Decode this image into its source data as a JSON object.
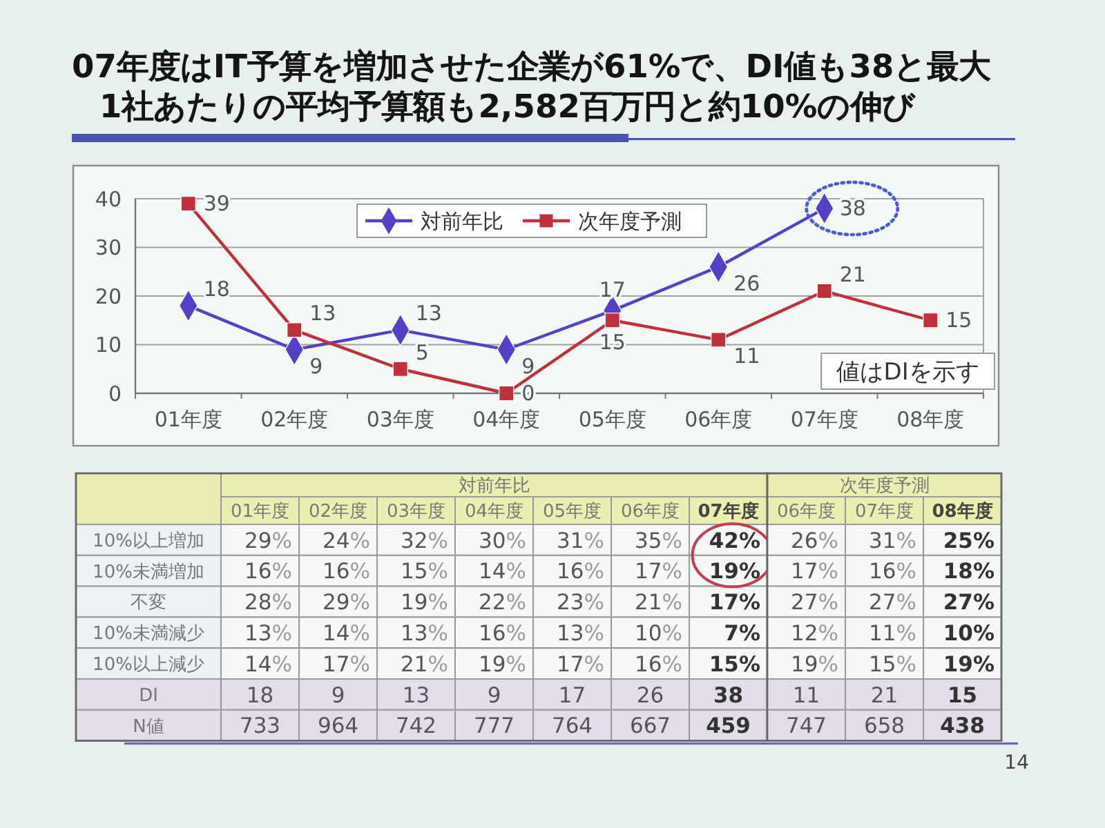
{
  "chart_data": [
    {
      "type": "line",
      "title": "07年度はIT予算を増加させた企業が61%で、DI値も38と最大",
      "subtitle": "1社あたりの平均予算額も2,582百万円と約10%の伸び",
      "categories": [
        "01年度",
        "02年度",
        "03年度",
        "04年度",
        "05年度",
        "06年度",
        "07年度",
        "08年度"
      ],
      "series": [
        {
          "name": "対前年比",
          "color": "#5541c9",
          "marker": "diamond",
          "values": [
            18,
            9,
            13,
            9,
            17,
            26,
            38,
            null
          ]
        },
        {
          "name": "次年度予測",
          "color": "#c0303a",
          "marker": "square",
          "values": [
            39,
            13,
            5,
            0,
            15,
            11,
            21,
            15
          ]
        }
      ],
      "ylim": [
        0,
        40
      ],
      "yticks": [
        0,
        10,
        20,
        30,
        40
      ],
      "grid": "y",
      "legend": "top",
      "data_labels": true,
      "annotations": [
        "値はDIを示す"
      ]
    },
    {
      "type": "heatmap",
      "title": "対前年比",
      "categories": [
        "01年度",
        "02年度",
        "03年度",
        "04年度",
        "05年度",
        "06年度",
        "07年度"
      ],
      "y_categories": [
        "10%以上増加",
        "10%未満増加",
        "不変",
        "10%未満減少",
        "10%以上減少",
        "DI",
        "N値"
      ],
      "cells": [
        [
          29,
          24,
          32,
          30,
          31,
          35,
          42
        ],
        [
          16,
          16,
          15,
          14,
          16,
          17,
          19
        ],
        [
          28,
          29,
          19,
          22,
          23,
          21,
          17
        ],
        [
          13,
          14,
          13,
          16,
          13,
          10,
          7
        ],
        [
          14,
          17,
          21,
          19,
          17,
          16,
          15
        ],
        [
          18,
          9,
          13,
          9,
          17,
          26,
          38
        ],
        [
          733,
          964,
          742,
          777,
          764,
          667,
          459
        ]
      ],
      "cell_labels": [
        [
          "29%",
          "24%",
          "32%",
          "30%",
          "31%",
          "35%",
          "42%"
        ],
        [
          "16%",
          "16%",
          "15%",
          "14%",
          "16%",
          "17%",
          "19%"
        ],
        [
          "28%",
          "29%",
          "19%",
          "22%",
          "23%",
          "21%",
          "17%"
        ],
        [
          "13%",
          "14%",
          "13%",
          "16%",
          "13%",
          "10%",
          "7%"
        ],
        [
          "14%",
          "17%",
          "21%",
          "19%",
          "17%",
          "16%",
          "15%"
        ],
        [
          "18",
          "9",
          "13",
          "9",
          "17",
          "26",
          "38"
        ],
        [
          "733",
          "964",
          "742",
          "777",
          "764",
          "667",
          "459"
        ]
      ]
    },
    {
      "type": "heatmap",
      "title": "次年度予測",
      "categories": [
        "06年度",
        "07年度",
        "08年度"
      ],
      "y_categories": [
        null,
        null,
        null,
        null,
        null,
        null,
        null
      ],
      "tick_labels": "x",
      "cells": [
        [
          26,
          31,
          25
        ],
        [
          17,
          16,
          18
        ],
        [
          27,
          27,
          27
        ],
        [
          12,
          11,
          10
        ],
        [
          19,
          15,
          19
        ],
        [
          11,
          21,
          15
        ],
        [
          747,
          658,
          438
        ]
      ],
      "cell_labels": [
        [
          "26%",
          "31%",
          "25%"
        ],
        [
          "17%",
          "16%",
          "18%"
        ],
        [
          "27%",
          "27%",
          "27%"
        ],
        [
          "12%",
          "11%",
          "10%"
        ],
        [
          "19%",
          "15%",
          "19%"
        ],
        [
          "11",
          "21",
          "15"
        ],
        [
          "747",
          "658",
          "438"
        ]
      ],
      "annotations": [
        "14"
      ]
    }
  ]
}
